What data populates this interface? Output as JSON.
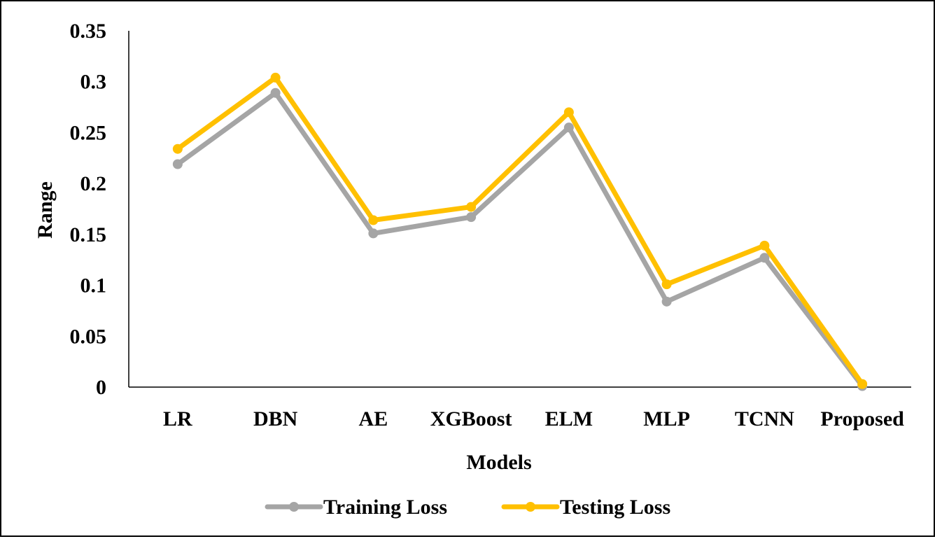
{
  "chart_data": {
    "type": "line",
    "title": "",
    "xlabel": "Models",
    "ylabel": "Range",
    "categories": [
      "LR",
      "DBN",
      "AE",
      "XGBoost",
      "ELM",
      "MLP",
      "TCNN",
      "Proposed"
    ],
    "ylim": [
      0,
      0.35
    ],
    "yticks": [
      "0",
      "0.05",
      "0.1",
      "0.15",
      "0.2",
      "0.25",
      "0.3",
      "0.35"
    ],
    "grid": false,
    "legend_position": "bottom",
    "series": [
      {
        "name": "Training Loss",
        "color": "#A5A5A5",
        "values": [
          0.219,
          0.289,
          0.151,
          0.167,
          0.255,
          0.084,
          0.127,
          0.001
        ]
      },
      {
        "name": "Testing Loss",
        "color": "#FFC000",
        "values": [
          0.234,
          0.304,
          0.164,
          0.177,
          0.27,
          0.101,
          0.139,
          0.003
        ]
      }
    ]
  }
}
